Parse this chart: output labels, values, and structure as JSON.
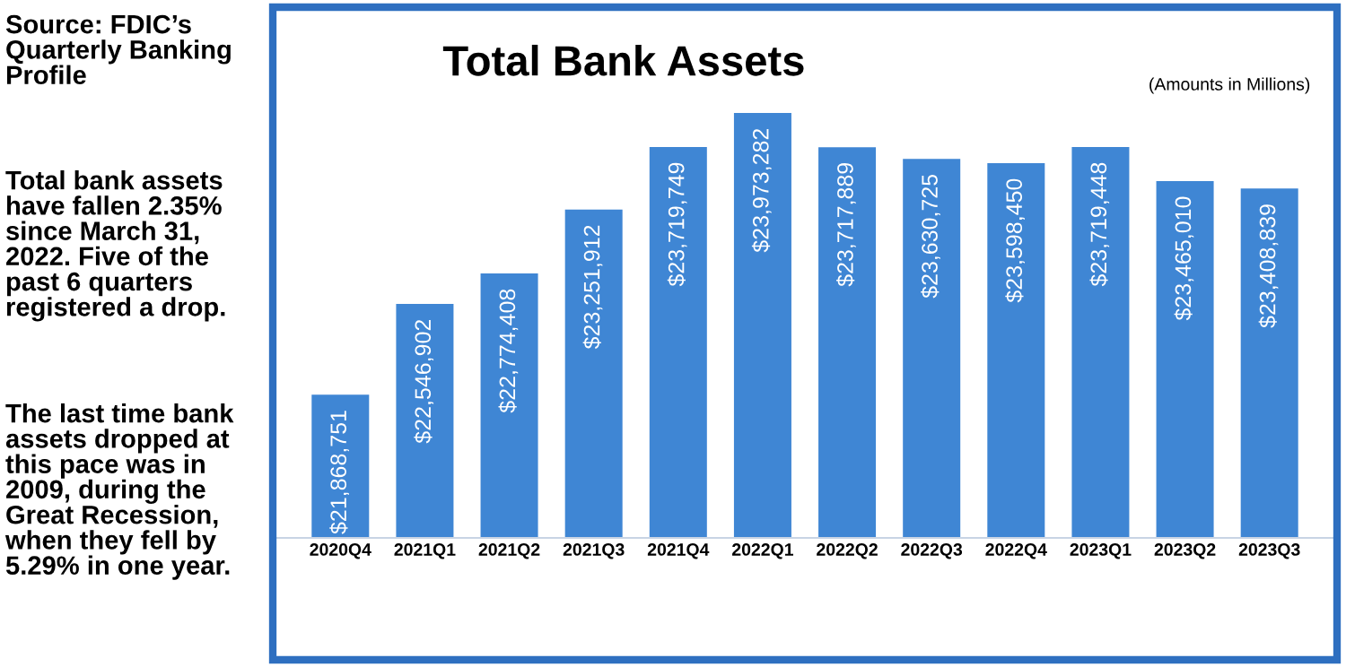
{
  "chart_data": {
    "type": "bar",
    "title": "Total Bank Assets",
    "subtitle": "(Amounts in Millions)",
    "categories": [
      "2020Q4",
      "2021Q1",
      "2021Q2",
      "2021Q3",
      "2021Q4",
      "2022Q1",
      "2022Q2",
      "2022Q3",
      "2022Q4",
      "2023Q1",
      "2023Q2",
      "2023Q3"
    ],
    "values": [
      21868751,
      22546902,
      22774408,
      23251912,
      23719749,
      23973282,
      23717889,
      23630725,
      23598450,
      23719448,
      23465010,
      23408839
    ],
    "value_labels": [
      "$21,868,751",
      "$22,546,902",
      "$22,774,408",
      "$23,251,912",
      "$23,719,749",
      "$23,973,282",
      "$23,717,889",
      "$23,630,725",
      "$23,598,450",
      "$23,719,448",
      "$23,465,010",
      "$23,408,839"
    ],
    "color": "#3f86d4",
    "ylim": [
      20800000,
      24750000
    ],
    "tick_labels": "x",
    "grid": false,
    "legend": false,
    "annotations": [
      "Source: FDIC’s\nQuarterly Banking\nProfile",
      "Total bank assets\nhave fallen 2.35%\nsince March 31,\n2022. Five of the\npast 6 quarters\nregistered a drop.",
      "The last time bank\nassets dropped at\nthis pace was in\n2009, during the\nGreat Recession,\nwhen they fell by\n5.29% in one year."
    ]
  }
}
